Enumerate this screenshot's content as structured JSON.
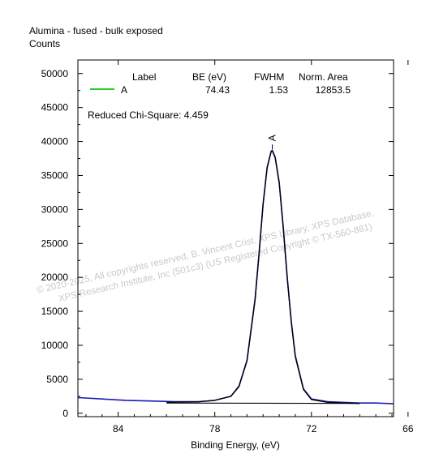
{
  "title": "Alumina - fused - bulk exposed",
  "ylabel": "Counts",
  "xlabel": "Binding Energy, (eV)",
  "legend_headers": {
    "label": "Label",
    "be": "BE (eV)",
    "fwhm": "FWHM",
    "area": "Norm. Area"
  },
  "legend_rows": [
    {
      "label": "A",
      "be": "74.43",
      "fwhm": "1.53",
      "area": "12853.5",
      "color": "#22cc22"
    }
  ],
  "chi_square_text": "Reduced Chi-Square: 4.459",
  "peak_marker": "A",
  "watermark_lines": [
    "©  2020-2025,  All copyrights reserved,   B. Vincent Crist,  XPS Library, XPS Database,",
    "XPS Research Institute, Inc (501c3)   (US Registered Copyright © TX-560-881)"
  ],
  "colors": {
    "data": "#1a1ab8",
    "fit": "#000000",
    "background_line": "#000000",
    "component": "#22cc22"
  },
  "chart_data": {
    "type": "line",
    "x_reversed": true,
    "xlim": [
      86.5,
      66.9
    ],
    "ylim": [
      -500,
      52000
    ],
    "x_ticks": [
      84,
      78,
      72,
      66
    ],
    "y_ticks": [
      0,
      5000,
      10000,
      15000,
      20000,
      25000,
      30000,
      35000,
      40000,
      45000,
      50000
    ],
    "series": [
      {
        "role": "data",
        "x": [
          86.5,
          85.0,
          83.5,
          82.0,
          80.5,
          79.0,
          78.0,
          77.0,
          76.5,
          76.0,
          75.5,
          75.25,
          75.0,
          74.75,
          74.5,
          74.43,
          74.25,
          74.0,
          73.75,
          73.5,
          73.25,
          73.0,
          72.5,
          72.0,
          71.0,
          70.0,
          69.0,
          68.0,
          66.9
        ],
        "y": [
          2300,
          2100,
          1900,
          1800,
          1700,
          1700,
          1900,
          2500,
          4000,
          7800,
          16800,
          23600,
          30800,
          36200,
          38600,
          38700,
          37700,
          34000,
          27500,
          20000,
          13500,
          8500,
          3600,
          2100,
          1700,
          1600,
          1500,
          1500,
          1400
        ]
      },
      {
        "role": "fit",
        "x": [
          81.0,
          79.0,
          78.0,
          77.0,
          76.5,
          76.0,
          75.5,
          75.25,
          75.0,
          74.75,
          74.5,
          74.43,
          74.25,
          74.0,
          73.75,
          73.5,
          73.25,
          73.0,
          72.5,
          72.0,
          71.0,
          70.0,
          69.0
        ],
        "y": [
          1600,
          1700,
          1900,
          2500,
          3900,
          7700,
          16600,
          23500,
          30700,
          36100,
          38500,
          38600,
          37600,
          33800,
          27300,
          19800,
          13300,
          8300,
          3500,
          2000,
          1600,
          1500,
          1450
        ]
      },
      {
        "role": "background",
        "x": [
          81.0,
          69.0
        ],
        "y": [
          1500,
          1450
        ]
      }
    ]
  }
}
